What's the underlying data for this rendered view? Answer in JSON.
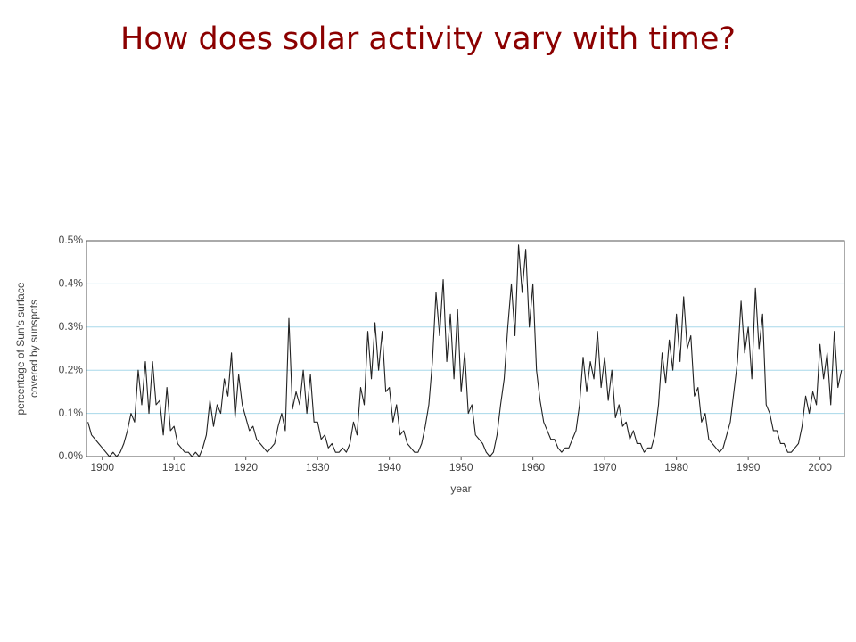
{
  "chart_data": {
    "type": "line",
    "title": "How does solar activity vary with time?",
    "xlabel": "year",
    "ylabel": [
      "percentage of Sun's surface",
      "covered by sunspots"
    ],
    "xlim": [
      1897.8,
      2003.4
    ],
    "ylim": [
      0,
      0.5
    ],
    "xticks": [
      1900,
      1910,
      1920,
      1930,
      1940,
      1950,
      1960,
      1970,
      1980,
      1990,
      2000
    ],
    "yticks": [
      {
        "value": 0,
        "label": "0.0%"
      },
      {
        "value": 0.1,
        "label": "0.1%"
      },
      {
        "value": 0.2,
        "label": "0.2%"
      },
      {
        "value": 0.3,
        "label": "0.3%"
      },
      {
        "value": 0.4,
        "label": "0.4%"
      },
      {
        "value": 0.5,
        "label": "0.5%"
      }
    ],
    "grid": true,
    "grid_color": "#a8d8ea",
    "series": [
      {
        "color": "#222222",
        "x": [
          1898,
          1898.5,
          1899,
          1899.5,
          1900,
          1900.5,
          1901,
          1901.5,
          1902,
          1902.5,
          1903,
          1903.5,
          1904,
          1904.5,
          1905,
          1905.5,
          1906,
          1906.5,
          1907,
          1907.5,
          1908,
          1908.5,
          1909,
          1909.5,
          1910,
          1910.5,
          1911,
          1911.5,
          1912,
          1912.5,
          1913,
          1913.5,
          1914,
          1914.5,
          1915,
          1915.5,
          1916,
          1916.5,
          1917,
          1917.5,
          1918,
          1918.5,
          1919,
          1919.5,
          1920,
          1920.5,
          1921,
          1921.5,
          1922,
          1922.5,
          1923,
          1923.5,
          1924,
          1924.5,
          1925,
          1925.5,
          1926,
          1926.5,
          1927,
          1927.5,
          1928,
          1928.5,
          1929,
          1929.5,
          1930,
          1930.5,
          1931,
          1931.5,
          1932,
          1932.5,
          1933,
          1933.5,
          1934,
          1934.5,
          1935,
          1935.5,
          1936,
          1936.5,
          1937,
          1937.5,
          1938,
          1938.5,
          1939,
          1939.5,
          1940,
          1940.5,
          1941,
          1941.5,
          1942,
          1942.5,
          1943,
          1943.5,
          1944,
          1944.5,
          1945,
          1945.5,
          1946,
          1946.5,
          1947,
          1947.5,
          1948,
          1948.5,
          1949,
          1949.5,
          1950,
          1950.5,
          1951,
          1951.5,
          1952,
          1952.5,
          1953,
          1953.5,
          1954,
          1954.5,
          1955,
          1955.5,
          1956,
          1956.5,
          1957,
          1957.5,
          1958,
          1958.5,
          1959,
          1959.5,
          1960,
          1960.5,
          1961,
          1961.5,
          1962,
          1962.5,
          1963,
          1963.5,
          1964,
          1964.5,
          1965,
          1965.5,
          1966,
          1966.5,
          1967,
          1967.5,
          1968,
          1968.5,
          1969,
          1969.5,
          1970,
          1970.5,
          1971,
          1971.5,
          1972,
          1972.5,
          1973,
          1973.5,
          1974,
          1974.5,
          1975,
          1975.5,
          1976,
          1976.5,
          1977,
          1977.5,
          1978,
          1978.5,
          1979,
          1979.5,
          1980,
          1980.5,
          1981,
          1981.5,
          1982,
          1982.5,
          1983,
          1983.5,
          1984,
          1984.5,
          1985,
          1985.5,
          1986,
          1986.5,
          1987,
          1987.5,
          1988,
          1988.5,
          1989,
          1989.5,
          1990,
          1990.5,
          1991,
          1991.5,
          1992,
          1992.5,
          1993,
          1993.5,
          1994,
          1994.5,
          1995,
          1995.5,
          1996,
          1996.5,
          1997,
          1997.5,
          1998,
          1998.5,
          1999,
          1999.5,
          2000,
          2000.5,
          2001,
          2001.5,
          2002,
          2002.5,
          2003
        ],
        "values": [
          0.08,
          0.05,
          0.04,
          0.03,
          0.02,
          0.01,
          0.0,
          0.01,
          0.0,
          0.01,
          0.03,
          0.06,
          0.1,
          0.08,
          0.2,
          0.12,
          0.22,
          0.1,
          0.22,
          0.12,
          0.13,
          0.05,
          0.16,
          0.06,
          0.07,
          0.03,
          0.02,
          0.01,
          0.01,
          0.0,
          0.01,
          0.0,
          0.02,
          0.05,
          0.13,
          0.07,
          0.12,
          0.1,
          0.18,
          0.14,
          0.24,
          0.09,
          0.19,
          0.12,
          0.09,
          0.06,
          0.07,
          0.04,
          0.03,
          0.02,
          0.01,
          0.02,
          0.03,
          0.07,
          0.1,
          0.06,
          0.32,
          0.11,
          0.15,
          0.12,
          0.2,
          0.1,
          0.19,
          0.08,
          0.08,
          0.04,
          0.05,
          0.02,
          0.03,
          0.01,
          0.01,
          0.02,
          0.01,
          0.03,
          0.08,
          0.05,
          0.16,
          0.12,
          0.29,
          0.18,
          0.31,
          0.2,
          0.29,
          0.15,
          0.16,
          0.08,
          0.12,
          0.05,
          0.06,
          0.03,
          0.02,
          0.01,
          0.01,
          0.03,
          0.07,
          0.12,
          0.22,
          0.38,
          0.28,
          0.41,
          0.22,
          0.33,
          0.18,
          0.34,
          0.15,
          0.24,
          0.1,
          0.12,
          0.05,
          0.04,
          0.03,
          0.01,
          0.0,
          0.01,
          0.05,
          0.12,
          0.18,
          0.3,
          0.4,
          0.28,
          0.49,
          0.38,
          0.48,
          0.3,
          0.4,
          0.2,
          0.13,
          0.08,
          0.06,
          0.04,
          0.04,
          0.02,
          0.01,
          0.02,
          0.02,
          0.04,
          0.06,
          0.12,
          0.23,
          0.15,
          0.22,
          0.18,
          0.29,
          0.16,
          0.23,
          0.13,
          0.2,
          0.09,
          0.12,
          0.07,
          0.08,
          0.04,
          0.06,
          0.03,
          0.03,
          0.01,
          0.02,
          0.02,
          0.05,
          0.12,
          0.24,
          0.17,
          0.27,
          0.2,
          0.33,
          0.22,
          0.37,
          0.25,
          0.28,
          0.14,
          0.16,
          0.08,
          0.1,
          0.04,
          0.03,
          0.02,
          0.01,
          0.02,
          0.05,
          0.08,
          0.15,
          0.22,
          0.36,
          0.24,
          0.3,
          0.18,
          0.39,
          0.25,
          0.33,
          0.12,
          0.1,
          0.06,
          0.06,
          0.03,
          0.03,
          0.01,
          0.01,
          0.02,
          0.03,
          0.07,
          0.14,
          0.1,
          0.15,
          0.12,
          0.26,
          0.18,
          0.24,
          0.12,
          0.29,
          0.16,
          0.2
        ]
      }
    ]
  }
}
